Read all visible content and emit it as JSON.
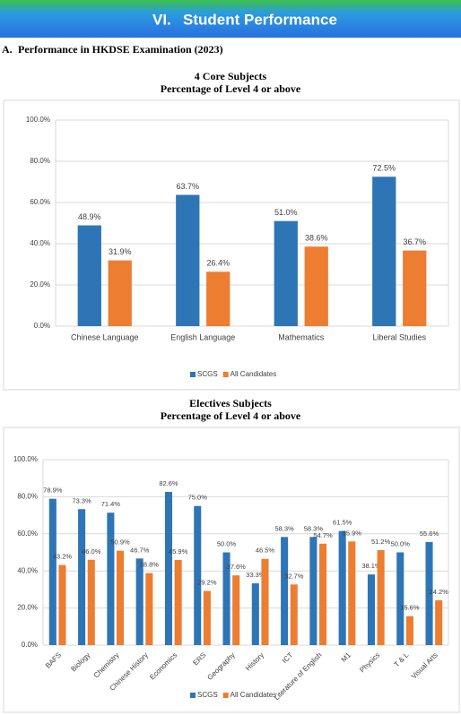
{
  "header": {
    "number": "VI.",
    "title": "Student Performance"
  },
  "section": {
    "label": "A.",
    "title": "Performance in HKDSE Examination (2023)"
  },
  "chart_data": [
    {
      "type": "bar",
      "title": "4 Core Subjects",
      "subtitle": "Percentage of Level 4 or above",
      "categories": [
        "Chinese Language",
        "English Language",
        "Mathematics",
        "Liberal Studies"
      ],
      "series": [
        {
          "name": "SCGS",
          "color": "#2e75b6",
          "values": [
            48.9,
            63.7,
            51.0,
            72.5
          ],
          "value_labels": [
            "48.9%",
            "63.7%",
            "51.0%",
            "72.5%"
          ]
        },
        {
          "name": "All Candidates",
          "color": "#ed7d31",
          "values": [
            31.9,
            26.4,
            38.6,
            36.7
          ],
          "value_labels": [
            "31.9%",
            "26.4%",
            "38.6%",
            "36.7%"
          ]
        }
      ],
      "ylim": [
        0,
        100
      ],
      "yticks": [
        {
          "value": 0,
          "label": "0.0%"
        },
        {
          "value": 20,
          "label": "20.0%"
        },
        {
          "value": 40,
          "label": "40.0%"
        },
        {
          "value": 60,
          "label": "60.0%"
        },
        {
          "value": 80,
          "label": "80.0%"
        },
        {
          "value": 100,
          "label": "100.0%"
        }
      ],
      "grid": true,
      "legend": "bottom"
    },
    {
      "type": "bar",
      "title": "Electives Subjects",
      "subtitle": "Percentage of Level 4 or above",
      "categories": [
        "BAFS",
        "Biology",
        "Chemistry",
        "Chinese History",
        "Economics",
        "ERS",
        "Geography",
        "History",
        "ICT",
        "Literature of English",
        "M1",
        "Physics",
        "T & L",
        "Visual Arts"
      ],
      "series": [
        {
          "name": "SCGS",
          "color": "#2e75b6",
          "values": [
            78.9,
            73.3,
            71.4,
            46.7,
            82.6,
            75.0,
            50.0,
            33.3,
            58.3,
            58.3,
            61.5,
            38.1,
            50.0,
            55.6
          ],
          "value_labels": [
            "78.9%",
            "73.3%",
            "71.4%",
            "46.7%",
            "82.6%",
            "75.0%",
            "50.0%",
            "33.3%",
            "58.3%",
            "58.3%",
            "61.5%",
            "38.1%",
            "50.0%",
            "55.6%"
          ]
        },
        {
          "name": "All Candidates",
          "color": "#ed7d31",
          "values": [
            43.2,
            46.0,
            50.9,
            38.8,
            45.9,
            29.2,
            37.6,
            46.5,
            32.7,
            54.7,
            55.9,
            51.2,
            15.6,
            24.2
          ],
          "value_labels": [
            "43.2%",
            "46.0%",
            "50.9%",
            "38.8%",
            "45.9%",
            "29.2%",
            "37.6%",
            "46.5%",
            "32.7%",
            "54.7%",
            "55.9%",
            "51.2%",
            "15.6%",
            "24.2%"
          ]
        }
      ],
      "ylim": [
        0,
        100
      ],
      "yticks": [
        {
          "value": 0,
          "label": "0.0%"
        },
        {
          "value": 20,
          "label": "20.0%"
        },
        {
          "value": 40,
          "label": "40.0%"
        },
        {
          "value": 60,
          "label": "60.0%"
        },
        {
          "value": 80,
          "label": "80.0%"
        },
        {
          "value": 100,
          "label": "100.0%"
        }
      ],
      "grid": true,
      "legend": "bottom"
    }
  ]
}
